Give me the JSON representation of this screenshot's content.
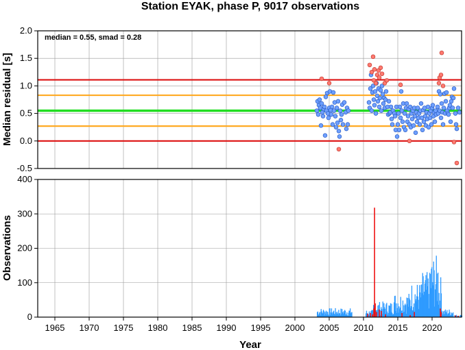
{
  "chart_data": [
    {
      "type": "scatter",
      "title": "Station EYAK, phase P, 9017 observations",
      "xlabel": "",
      "ylabel": "Median residual [s]",
      "xlim": [
        1962.5,
        2024.3
      ],
      "ylim": [
        -0.5,
        2.0
      ],
      "y_ticks": [
        "-0.5",
        "0.0",
        "0.5",
        "1.0",
        "1.5",
        "2.0"
      ],
      "grid": true,
      "annotation": "median = 0.55, smad = 0.28",
      "reference_lines": [
        {
          "y": 0.55,
          "color": "#22dd22"
        },
        {
          "y": 0.83,
          "color": "#ffaa22"
        },
        {
          "y": 0.27,
          "color": "#ffaa22"
        },
        {
          "y": 1.11,
          "color": "#dd1111"
        },
        {
          "y": 0.0,
          "color": "#dd1111"
        }
      ],
      "series": [
        {
          "color": "#6fa0ff",
          "points": [
            [
              2003.2,
              0.55
            ],
            [
              2003.3,
              0.72
            ],
            [
              2003.4,
              0.48
            ],
            [
              2003.5,
              0.65
            ],
            [
              2003.6,
              0.75
            ],
            [
              2003.7,
              0.6
            ],
            [
              2003.8,
              0.28
            ],
            [
              2003.9,
              0.68
            ],
            [
              2004.0,
              0.52
            ],
            [
              2004.1,
              0.45
            ],
            [
              2004.2,
              0.58
            ],
            [
              2004.3,
              0.62
            ],
            [
              2004.4,
              0.1
            ],
            [
              2004.5,
              0.8
            ],
            [
              2004.6,
              0.55
            ],
            [
              2004.7,
              0.87
            ],
            [
              2004.8,
              0.5
            ],
            [
              2004.9,
              0.42
            ],
            [
              2005.0,
              0.6
            ],
            [
              2005.1,
              0.9
            ],
            [
              2005.2,
              0.56
            ],
            [
              2005.3,
              0.48
            ],
            [
              2005.4,
              0.62
            ],
            [
              2005.5,
              0.3
            ],
            [
              2005.6,
              0.88
            ],
            [
              2005.7,
              0.55
            ],
            [
              2005.8,
              0.7
            ],
            [
              2005.9,
              0.45
            ],
            [
              2006.0,
              0.25
            ],
            [
              2006.1,
              0.6
            ],
            [
              2006.2,
              0.33
            ],
            [
              2006.3,
              0.72
            ],
            [
              2006.4,
              0.18
            ],
            [
              2006.5,
              0.08
            ],
            [
              2006.6,
              0.55
            ],
            [
              2006.7,
              0.38
            ],
            [
              2006.8,
              0.48
            ],
            [
              2006.9,
              0.66
            ],
            [
              2007.0,
              0.3
            ],
            [
              2007.2,
              0.7
            ],
            [
              2007.4,
              0.52
            ],
            [
              2007.5,
              0.22
            ],
            [
              2007.6,
              0.6
            ],
            [
              2007.7,
              0.3
            ],
            [
              2007.8,
              0.55
            ],
            [
              2010.8,
              0.7
            ],
            [
              2010.9,
              0.6
            ],
            [
              2011.0,
              0.95
            ],
            [
              2011.1,
              1.2
            ],
            [
              2011.2,
              0.55
            ],
            [
              2011.3,
              0.88
            ],
            [
              2011.4,
              1.0
            ],
            [
              2011.5,
              0.75
            ],
            [
              2011.6,
              0.65
            ],
            [
              2011.7,
              0.9
            ],
            [
              2011.8,
              0.5
            ],
            [
              2011.9,
              1.05
            ],
            [
              2012.0,
              0.82
            ],
            [
              2012.1,
              0.72
            ],
            [
              2012.2,
              0.95
            ],
            [
              2012.3,
              0.62
            ],
            [
              2012.4,
              0.78
            ],
            [
              2012.5,
              0.92
            ],
            [
              2012.6,
              0.55
            ],
            [
              2012.7,
              1.0
            ],
            [
              2012.8,
              0.85
            ],
            [
              2012.9,
              0.68
            ],
            [
              2013.0,
              0.78
            ],
            [
              2013.1,
              0.6
            ],
            [
              2013.2,
              0.75
            ],
            [
              2013.3,
              0.9
            ],
            [
              2013.5,
              0.62
            ],
            [
              2013.6,
              0.48
            ],
            [
              2013.7,
              0.72
            ],
            [
              2013.8,
              0.5
            ],
            [
              2013.9,
              0.52
            ],
            [
              2014.0,
              0.62
            ],
            [
              2014.1,
              0.4
            ],
            [
              2014.2,
              0.3
            ],
            [
              2014.3,
              0.55
            ],
            [
              2014.5,
              0.5
            ],
            [
              2014.6,
              0.45
            ],
            [
              2014.7,
              0.2
            ],
            [
              2014.8,
              0.62
            ],
            [
              2014.9,
              0.08
            ],
            [
              2015.0,
              0.3
            ],
            [
              2015.1,
              0.5
            ],
            [
              2015.2,
              0.2
            ],
            [
              2015.3,
              0.62
            ],
            [
              2015.4,
              0.42
            ],
            [
              2015.5,
              0.9
            ],
            [
              2015.6,
              0.55
            ],
            [
              2015.7,
              0.35
            ],
            [
              2015.8,
              0.68
            ],
            [
              2015.9,
              0.25
            ],
            [
              2016.0,
              0.5
            ],
            [
              2016.1,
              0.2
            ],
            [
              2016.2,
              0.6
            ],
            [
              2016.3,
              0.68
            ],
            [
              2016.4,
              0.35
            ],
            [
              2016.5,
              0.45
            ],
            [
              2016.6,
              0.58
            ],
            [
              2016.7,
              0.3
            ],
            [
              2016.8,
              0.62
            ],
            [
              2016.9,
              0.25
            ],
            [
              2017.0,
              0.5
            ],
            [
              2017.1,
              0.4
            ],
            [
              2017.2,
              0.55
            ],
            [
              2017.3,
              0.28
            ],
            [
              2017.4,
              0.6
            ],
            [
              2017.5,
              0.45
            ],
            [
              2017.6,
              0.15
            ],
            [
              2017.7,
              0.52
            ],
            [
              2017.8,
              0.35
            ],
            [
              2017.9,
              0.6
            ],
            [
              2018.0,
              0.42
            ],
            [
              2018.1,
              0.5
            ],
            [
              2018.2,
              0.3
            ],
            [
              2018.3,
              0.55
            ],
            [
              2018.4,
              0.68
            ],
            [
              2018.5,
              0.42
            ],
            [
              2018.6,
              0.2
            ],
            [
              2018.7,
              0.56
            ],
            [
              2018.8,
              0.35
            ],
            [
              2018.9,
              0.6
            ],
            [
              2019.0,
              0.45
            ],
            [
              2019.1,
              0.28
            ],
            [
              2019.2,
              0.52
            ],
            [
              2019.3,
              0.4
            ],
            [
              2019.4,
              0.62
            ],
            [
              2019.5,
              0.25
            ],
            [
              2019.6,
              0.5
            ],
            [
              2019.7,
              0.42
            ],
            [
              2019.8,
              0.55
            ],
            [
              2019.9,
              0.3
            ],
            [
              2020.0,
              0.6
            ],
            [
              2020.1,
              0.65
            ],
            [
              2020.2,
              0.45
            ],
            [
              2020.3,
              0.52
            ],
            [
              2020.4,
              0.35
            ],
            [
              2020.5,
              0.55
            ],
            [
              2020.6,
              0.48
            ],
            [
              2020.8,
              0.62
            ],
            [
              2020.9,
              0.5
            ],
            [
              2021.0,
              0.9
            ],
            [
              2021.1,
              0.55
            ],
            [
              2021.2,
              0.85
            ],
            [
              2021.3,
              0.42
            ],
            [
              2021.4,
              0.68
            ],
            [
              2021.5,
              0.52
            ],
            [
              2021.6,
              0.3
            ],
            [
              2021.7,
              0.6
            ],
            [
              2021.8,
              0.86
            ],
            [
              2021.9,
              0.5
            ],
            [
              2022.0,
              0.72
            ],
            [
              2022.1,
              0.88
            ],
            [
              2022.2,
              0.55
            ],
            [
              2022.3,
              0.5
            ],
            [
              2022.4,
              0.48
            ],
            [
              2022.5,
              0.6
            ],
            [
              2022.6,
              0.65
            ],
            [
              2022.7,
              0.35
            ],
            [
              2022.8,
              0.72
            ],
            [
              2022.9,
              0.8
            ],
            [
              2023.0,
              0.6
            ],
            [
              2023.1,
              0.78
            ],
            [
              2023.2,
              0.95
            ],
            [
              2023.4,
              0.5
            ],
            [
              2023.5,
              0.3
            ],
            [
              2023.6,
              0.22
            ],
            [
              2023.8,
              0.6
            ],
            [
              2024.0,
              0.52
            ]
          ]
        },
        {
          "color": "#ff7a70",
          "points": [
            [
              2003.9,
              1.13
            ],
            [
              2005.0,
              1.05
            ],
            [
              2006.4,
              -0.15
            ],
            [
              2010.9,
              1.38
            ],
            [
              2011.2,
              1.25
            ],
            [
              2011.4,
              1.53
            ],
            [
              2011.5,
              1.1
            ],
            [
              2011.6,
              1.3
            ],
            [
              2011.8,
              1.05
            ],
            [
              2012.0,
              1.2
            ],
            [
              2012.2,
              1.28
            ],
            [
              2012.3,
              1.15
            ],
            [
              2012.5,
              1.33
            ],
            [
              2012.7,
              1.22
            ],
            [
              2013.1,
              1.05
            ],
            [
              2013.4,
              1.1
            ],
            [
              2015.4,
              1.02
            ],
            [
              2016.7,
              0.0
            ],
            [
              2021.0,
              1.05
            ],
            [
              2021.1,
              1.15
            ],
            [
              2021.3,
              1.2
            ],
            [
              2021.4,
              1.6
            ],
            [
              2021.6,
              1.0
            ],
            [
              2023.2,
              -0.02
            ],
            [
              2023.6,
              -0.4
            ]
          ]
        }
      ]
    },
    {
      "type": "bar",
      "xlabel": "Year",
      "ylabel": "Observations",
      "xlim": [
        1962.5,
        2024.3
      ],
      "ylim": [
        0,
        400
      ],
      "x_ticks": [
        "1965",
        "1970",
        "1975",
        "1980",
        "1985",
        "1990",
        "1995",
        "2000",
        "2005",
        "2010",
        "2015",
        "2020"
      ],
      "y_ticks": [
        "0",
        "100",
        "200",
        "300",
        "400"
      ],
      "grid": true,
      "series": [
        {
          "color": "#2f9bff",
          "segments": [
            {
              "start": 2003.2,
              "end": 2008.3,
              "level": 22
            },
            {
              "start": 2010.3,
              "end": 2011.4,
              "level": 18
            },
            {
              "start": 2011.4,
              "end": 2014.4,
              "level": 38
            },
            {
              "start": 2014.4,
              "end": 2016.9,
              "level": 60
            },
            {
              "start": 2016.9,
              "end": 2018.4,
              "level": 85
            },
            {
              "start": 2018.4,
              "end": 2019.6,
              "level": 110
            },
            {
              "start": 2019.6,
              "end": 2020.8,
              "level": 150
            },
            {
              "start": 2020.8,
              "end": 2021.4,
              "level": 100
            },
            {
              "start": 2021.4,
              "end": 2023.0,
              "level": 20
            },
            {
              "start": 2023.0,
              "end": 2024.3,
              "level": 6
            }
          ]
        },
        {
          "color": "#ee1111",
          "bars": [
            [
              2010.6,
              10
            ],
            [
              2011.0,
              12
            ],
            [
              2011.3,
              8
            ],
            [
              2011.5,
              25
            ],
            [
              2011.6,
              318
            ],
            [
              2011.7,
              40
            ],
            [
              2011.9,
              15
            ],
            [
              2012.3,
              22
            ],
            [
              2012.6,
              18
            ],
            [
              2013.2,
              8
            ],
            [
              2015.6,
              12
            ],
            [
              2016.8,
              6
            ],
            [
              2017.4,
              15
            ],
            [
              2021.2,
              25
            ],
            [
              2021.3,
              15
            ],
            [
              2023.4,
              5
            ],
            [
              2023.8,
              4
            ]
          ]
        }
      ]
    }
  ]
}
